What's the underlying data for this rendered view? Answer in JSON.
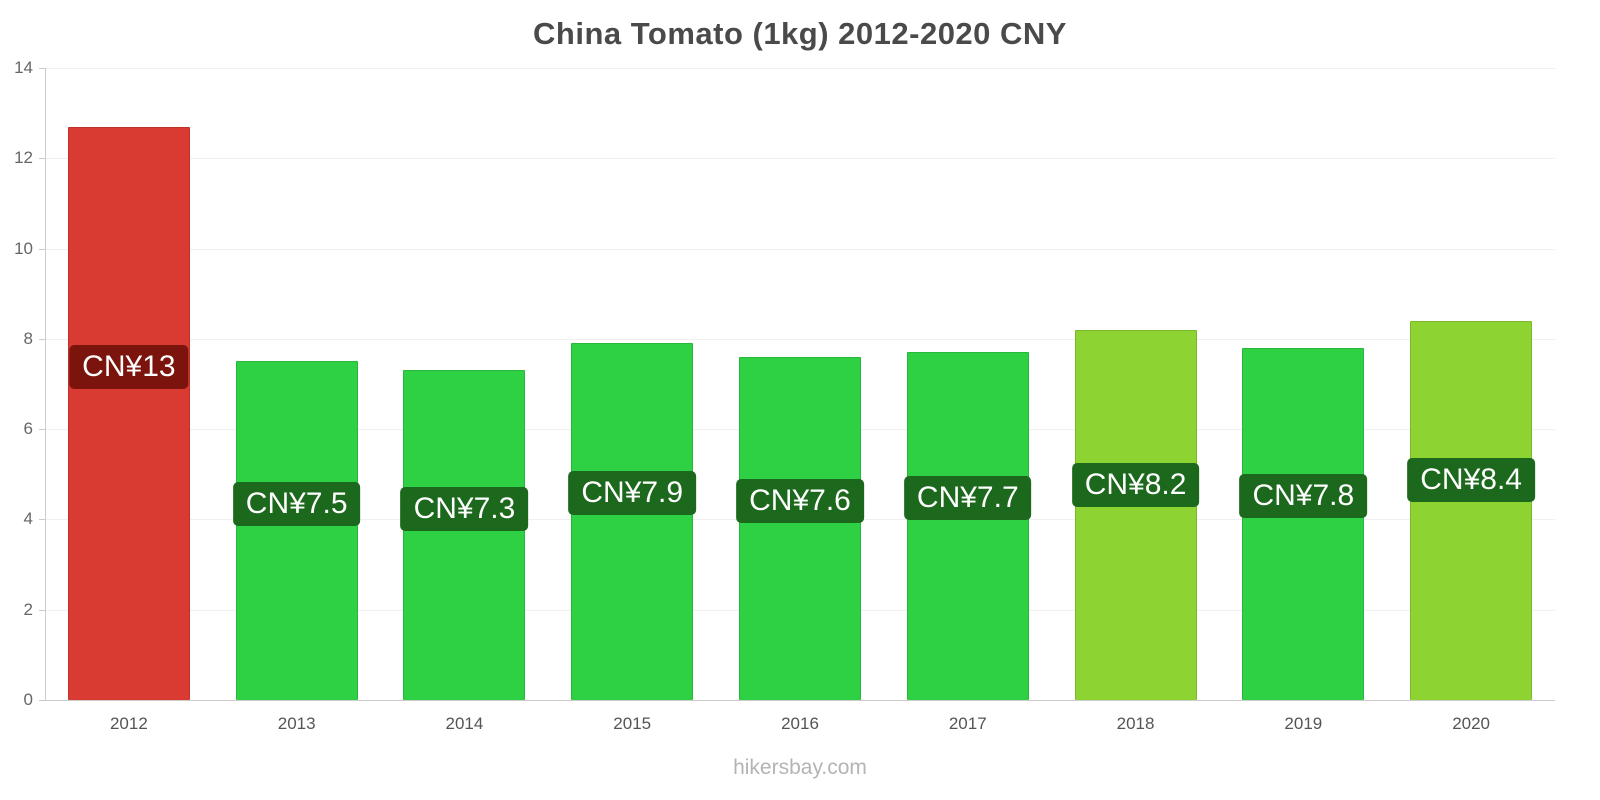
{
  "title": "China Tomato (1kg) 2012-2020 CNY",
  "footer": "hikersbay.com",
  "chart_data": {
    "type": "bar",
    "title": "China Tomato (1kg) 2012-2020 CNY",
    "categories": [
      "2012",
      "2013",
      "2014",
      "2015",
      "2016",
      "2017",
      "2018",
      "2019",
      "2020"
    ],
    "values": [
      12.7,
      7.5,
      7.3,
      7.9,
      7.6,
      7.7,
      8.2,
      7.8,
      8.4
    ],
    "value_labels": [
      "CN¥13",
      "CN¥7.5",
      "CN¥7.3",
      "CN¥7.9",
      "CN¥7.6",
      "CN¥7.7",
      "CN¥8.2",
      "CN¥7.8",
      "CN¥8.4"
    ],
    "bar_colors": [
      "#d93a31",
      "#2ed044",
      "#2ed044",
      "#2ed044",
      "#2ed044",
      "#2ed044",
      "#8dd432",
      "#2ed044",
      "#8dd432"
    ],
    "label_bg_colors": [
      "#7a140d",
      "#1c681c",
      "#1c681c",
      "#1c681c",
      "#1c681c",
      "#1c681c",
      "#1c681c",
      "#1c681c",
      "#1c681c"
    ],
    "xlabel": "",
    "ylabel": "",
    "ylim": [
      0,
      14
    ],
    "yticks": [
      0,
      2,
      4,
      6,
      8,
      10,
      12,
      14
    ],
    "grid": true,
    "legend": false
  },
  "colors": {
    "accent_red": "#d93a31",
    "accent_green": "#2ed044",
    "accent_light_green": "#8dd432",
    "label_dark_red": "#7a140d",
    "label_dark_green": "#1c681c",
    "axis": "#cccccc",
    "grid": "#f0f0f0",
    "title_text": "#4a4a4a",
    "tick_text": "#666666",
    "footer_text": "#b4b4b4"
  }
}
